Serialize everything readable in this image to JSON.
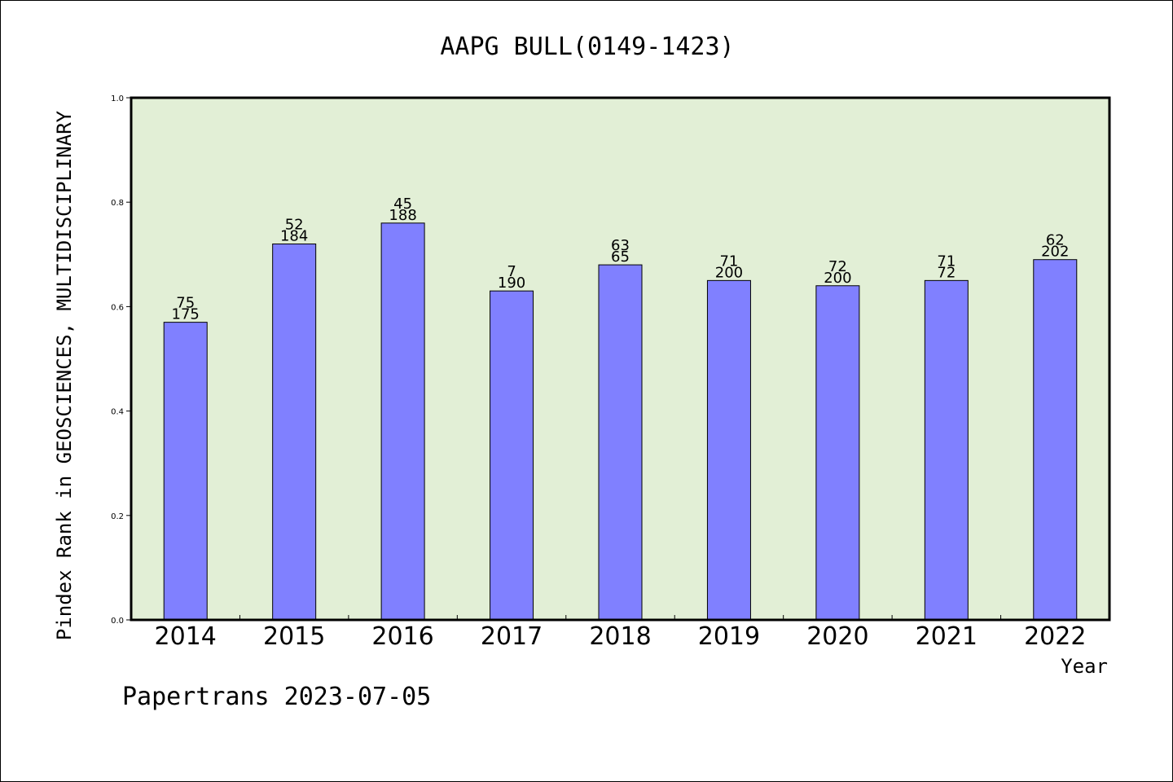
{
  "chart_data": {
    "type": "bar",
    "title": "AAPG BULL(0149-1423)",
    "xlabel": "Year",
    "ylabel": "Pindex Rank in GEOSCIENCES, MULTIDISCIPLINARY",
    "categories": [
      "2014",
      "2015",
      "2016",
      "2017",
      "2018",
      "2019",
      "2020",
      "2021",
      "2022"
    ],
    "values": [
      0.57,
      0.72,
      0.76,
      0.63,
      0.68,
      0.65,
      0.64,
      0.65,
      0.69
    ],
    "label_top": [
      "75",
      "52",
      "45",
      "7",
      "63",
      "71",
      "72",
      "71",
      "62"
    ],
    "label_bottom": [
      "175",
      "184",
      "188",
      "190",
      "65",
      "200",
      "200",
      "72",
      "202"
    ],
    "ylim": [
      0,
      1.0
    ],
    "yticks": [
      "0.0",
      "0.2",
      "0.4",
      "0.6",
      "0.8",
      "1.0"
    ],
    "grid": false,
    "colors": {
      "plot_background": "#e2efd6",
      "bar": "#8080ff",
      "axis": "#000000"
    }
  },
  "footer": {
    "watermark": "Papertrans 2023-07-05"
  }
}
